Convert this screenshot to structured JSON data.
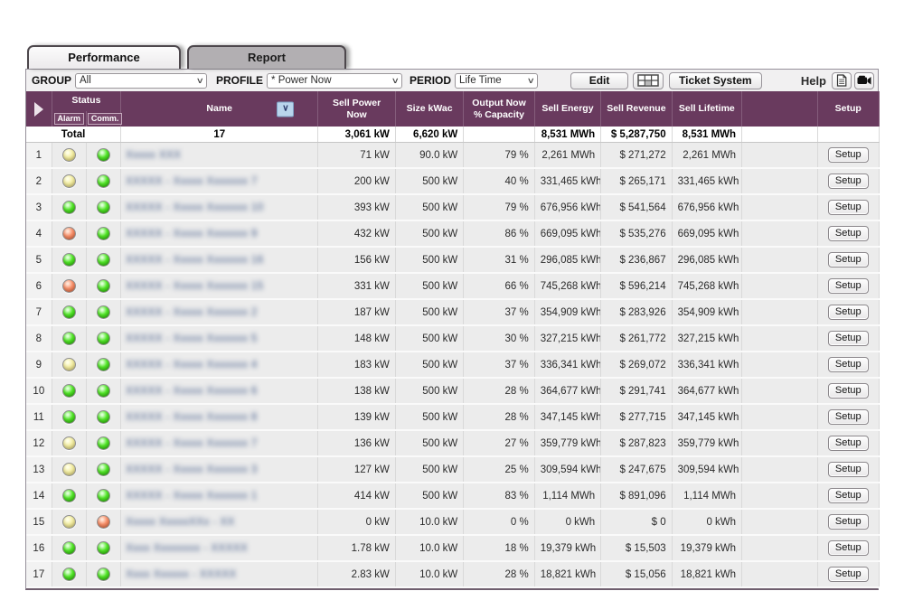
{
  "tabs": [
    {
      "label": "Performance",
      "active": true
    },
    {
      "label": "Report",
      "active": false
    }
  ],
  "toolbar": {
    "group_label": "GROUP",
    "group_value": "All",
    "profile_label": "PROFILE",
    "profile_value": "* Power Now",
    "period_label": "PERIOD",
    "period_value": "Life Time",
    "edit_button": "Edit",
    "ticket_button": "Ticket System",
    "help_label": "Help"
  },
  "table": {
    "headers": {
      "status": "Status",
      "alarm": "Alarm",
      "comm": "Comm.",
      "name": "Name",
      "sell_power": "Sell Power\nNow",
      "size": "Size kWac",
      "output": "Output Now\n% Capacity",
      "energy": "Sell Energy",
      "revenue": "Sell Revenue",
      "lifetime": "Sell Lifetime",
      "blank": "",
      "setup": "Setup"
    },
    "total": {
      "label": "Total",
      "count": "17",
      "power": "3,061 kW",
      "size": "6,620 kW",
      "pct": "",
      "energy": "8,531 MWh",
      "revenue": "$ 5,287,750",
      "lifetime": "8,531 MWh"
    },
    "setup_button_label": "Setup",
    "rows": [
      {
        "n": "1",
        "alarm": "yellow",
        "comm": "green",
        "name_redacted": "Xxxxx XXX",
        "power": "71 kW",
        "size": "90.0 kW",
        "pct": "79 %",
        "energy": "2,261 MWh",
        "revenue": "$ 271,272",
        "lifetime": "2,261 MWh"
      },
      {
        "n": "2",
        "alarm": "yellow",
        "comm": "green",
        "name_redacted": "XXXXX - Xxxxx Xxxxxxx 7",
        "power": "200 kW",
        "size": "500 kW",
        "pct": "40 %",
        "energy": "331,465 kWh",
        "revenue": "$ 265,171",
        "lifetime": "331,465 kWh"
      },
      {
        "n": "3",
        "alarm": "green",
        "comm": "green",
        "name_redacted": "XXXXX - Xxxxx Xxxxxxx 10",
        "power": "393 kW",
        "size": "500 kW",
        "pct": "79 %",
        "energy": "676,956 kWh",
        "revenue": "$ 541,564",
        "lifetime": "676,956 kWh"
      },
      {
        "n": "4",
        "alarm": "orange",
        "comm": "green",
        "name_redacted": "XXXXX - Xxxxx Xxxxxxx 9",
        "power": "432 kW",
        "size": "500 kW",
        "pct": "86 %",
        "energy": "669,095 kWh",
        "revenue": "$ 535,276",
        "lifetime": "669,095 kWh"
      },
      {
        "n": "5",
        "alarm": "green",
        "comm": "green",
        "name_redacted": "XXXXX - Xxxxx Xxxxxxx 16",
        "power": "156 kW",
        "size": "500 kW",
        "pct": "31 %",
        "energy": "296,085 kWh",
        "revenue": "$ 236,867",
        "lifetime": "296,085 kWh"
      },
      {
        "n": "6",
        "alarm": "orange",
        "comm": "green",
        "name_redacted": "XXXXX - Xxxxx Xxxxxxx 15",
        "power": "331 kW",
        "size": "500 kW",
        "pct": "66 %",
        "energy": "745,268 kWh",
        "revenue": "$ 596,214",
        "lifetime": "745,268 kWh"
      },
      {
        "n": "7",
        "alarm": "green",
        "comm": "green",
        "name_redacted": "XXXXX - Xxxxx Xxxxxxx 2",
        "power": "187 kW",
        "size": "500 kW",
        "pct": "37 %",
        "energy": "354,909 kWh",
        "revenue": "$ 283,926",
        "lifetime": "354,909 kWh"
      },
      {
        "n": "8",
        "alarm": "green",
        "comm": "green",
        "name_redacted": "XXXXX - Xxxxx Xxxxxxx 5",
        "power": "148 kW",
        "size": "500 kW",
        "pct": "30 %",
        "energy": "327,215 kWh",
        "revenue": "$ 261,772",
        "lifetime": "327,215 kWh"
      },
      {
        "n": "9",
        "alarm": "yellow",
        "comm": "green",
        "name_redacted": "XXXXX - Xxxxx Xxxxxxx 4",
        "power": "183 kW",
        "size": "500 kW",
        "pct": "37 %",
        "energy": "336,341 kWh",
        "revenue": "$ 269,072",
        "lifetime": "336,341 kWh"
      },
      {
        "n": "10",
        "alarm": "green",
        "comm": "green",
        "name_redacted": "XXXXX - Xxxxx Xxxxxxx 6",
        "power": "138 kW",
        "size": "500 kW",
        "pct": "28 %",
        "energy": "364,677 kWh",
        "revenue": "$ 291,741",
        "lifetime": "364,677 kWh"
      },
      {
        "n": "11",
        "alarm": "green",
        "comm": "green",
        "name_redacted": "XXXXX - Xxxxx Xxxxxxx 8",
        "power": "139 kW",
        "size": "500 kW",
        "pct": "28 %",
        "energy": "347,145 kWh",
        "revenue": "$ 277,715",
        "lifetime": "347,145 kWh"
      },
      {
        "n": "12",
        "alarm": "yellow",
        "comm": "green",
        "name_redacted": "XXXXX - Xxxxx Xxxxxxx 7",
        "power": "136 kW",
        "size": "500 kW",
        "pct": "27 %",
        "energy": "359,779 kWh",
        "revenue": "$ 287,823",
        "lifetime": "359,779 kWh"
      },
      {
        "n": "13",
        "alarm": "yellow",
        "comm": "green",
        "name_redacted": "XXXXX - Xxxxx Xxxxxxx 3",
        "power": "127 kW",
        "size": "500 kW",
        "pct": "25 %",
        "energy": "309,594 kWh",
        "revenue": "$ 247,675",
        "lifetime": "309,594 kWh"
      },
      {
        "n": "14",
        "alarm": "green",
        "comm": "green",
        "name_redacted": "XXXXX - Xxxxx Xxxxxxx 1",
        "power": "414 kW",
        "size": "500 kW",
        "pct": "83 %",
        "energy": "1,114 MWh",
        "revenue": "$ 891,096",
        "lifetime": "1,114 MWh"
      },
      {
        "n": "15",
        "alarm": "yellow",
        "comm": "orange",
        "name_redacted": "Xxxxx XxxxxXXx - XX",
        "power": "0 kW",
        "size": "10.0 kW",
        "pct": "0 %",
        "energy": "0 kWh",
        "revenue": "$ 0",
        "lifetime": "0 kWh"
      },
      {
        "n": "16",
        "alarm": "green",
        "comm": "green",
        "name_redacted": "Xxxx Xxxxxxxx - XXXXX",
        "power": "1.78 kW",
        "size": "10.0 kW",
        "pct": "18 %",
        "energy": "19,379 kWh",
        "revenue": "$ 15,503",
        "lifetime": "19,379 kWh"
      },
      {
        "n": "17",
        "alarm": "green",
        "comm": "green",
        "name_redacted": "Xxxx Xxxxxx - XXXXX",
        "power": "2.83 kW",
        "size": "10.0 kW",
        "pct": "28 %",
        "energy": "18,821 kWh",
        "revenue": "$ 15,056",
        "lifetime": "18,821 kWh"
      }
    ]
  },
  "status_legend": {
    "green": "ok",
    "yellow": "warning",
    "orange": "alarm"
  },
  "colors": {
    "header_bg": "#693a5e",
    "row_bg": "#ececec",
    "tab_inactive_bg": "#b2afb2",
    "led_green": "#52e628",
    "led_yellow": "#f3eda2",
    "led_orange": "#f8906a",
    "sort_button_bg": "#b9d5ec"
  }
}
